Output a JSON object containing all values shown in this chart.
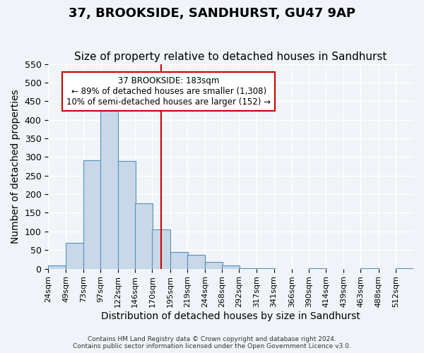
{
  "title": "37, BROOKSIDE, SANDHURST, GU47 9AP",
  "subtitle": "Size of property relative to detached houses in Sandhurst",
  "xlabel": "Distribution of detached houses by size in Sandhurst",
  "ylabel": "Number of detached properties",
  "bin_labels": [
    "24sqm",
    "49sqm",
    "73sqm",
    "97sqm",
    "122sqm",
    "146sqm",
    "170sqm",
    "195sqm",
    "219sqm",
    "244sqm",
    "268sqm",
    "292sqm",
    "317sqm",
    "341sqm",
    "366sqm",
    "390sqm",
    "414sqm",
    "439sqm",
    "463sqm",
    "488sqm",
    "512sqm"
  ],
  "bar_heights": [
    8,
    70,
    291,
    425,
    290,
    175,
    106,
    44,
    38,
    18,
    8,
    2,
    1,
    0,
    0,
    2,
    0,
    0,
    1,
    0,
    2
  ],
  "bar_color": "#c8d8e8",
  "bar_edge_color": "#5590bb",
  "vline_x": 183,
  "bin_edges": [
    24,
    49,
    73,
    97,
    122,
    146,
    170,
    195,
    219,
    244,
    268,
    292,
    317,
    341,
    366,
    390,
    414,
    439,
    463,
    488,
    512
  ],
  "bin_width": 25,
  "ylim": [
    0,
    550
  ],
  "yticks": [
    0,
    50,
    100,
    150,
    200,
    250,
    300,
    350,
    400,
    450,
    500,
    550
  ],
  "annotation_title": "37 BROOKSIDE: 183sqm",
  "annotation_line1": "← 89% of detached houses are smaller (1,308)",
  "annotation_line2": "10% of semi-detached houses are larger (152) →",
  "annotation_box_color": "#ffffff",
  "annotation_box_edge": "#cc0000",
  "footer_line1": "Contains HM Land Registry data © Crown copyright and database right 2024.",
  "footer_line2": "Contains public sector information licensed under the Open Government Licence v3.0.",
  "background_color": "#f0f4f8",
  "grid_color": "#ffffff",
  "title_fontsize": 13,
  "subtitle_fontsize": 11,
  "axis_fontsize": 10,
  "tick_fontsize": 9
}
